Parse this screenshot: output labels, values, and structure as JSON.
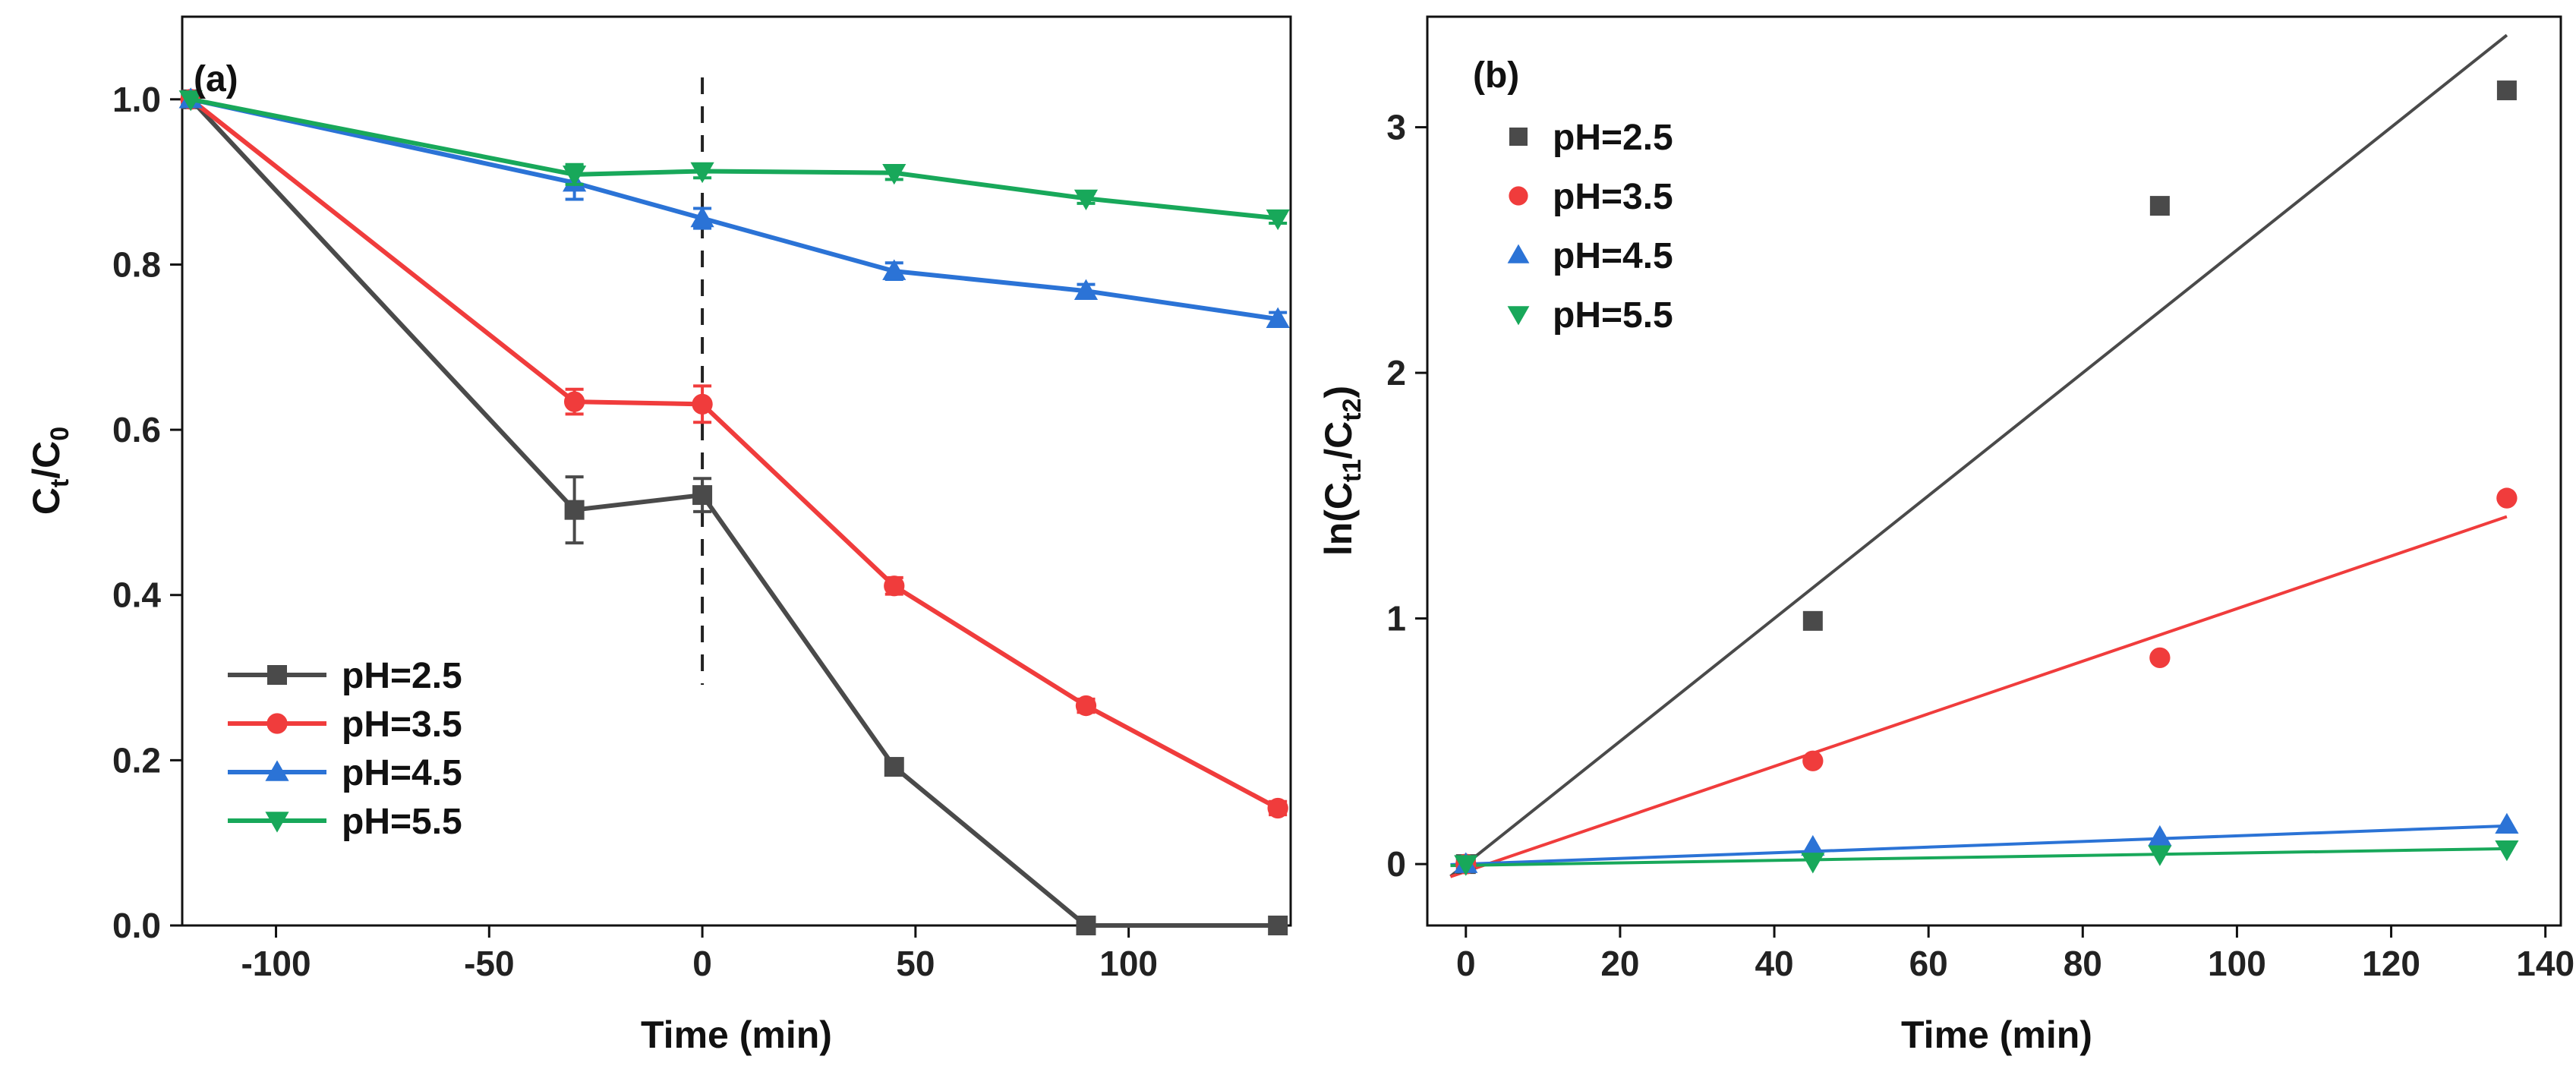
{
  "chart_data": [
    {
      "type": "line",
      "panel": "(a)",
      "xlabel": "Time (min)",
      "ylabel": "Ct/C0",
      "ylabel_main": "C",
      "ylabel_sub1": "t",
      "ylabel_mid": "/C",
      "ylabel_sub2": "0",
      "xlim": [
        -122,
        138
      ],
      "ylim": [
        0,
        1.1
      ],
      "xticks": [
        -100,
        -50,
        0,
        50,
        100
      ],
      "yticks": [
        0.0,
        0.2,
        0.4,
        0.6,
        0.8,
        1.0
      ],
      "ytick_labels": [
        "0.0",
        "0.2",
        "0.4",
        "0.6",
        "0.8",
        "1.0"
      ],
      "vline_x": 0,
      "legend_position": "bottom-left",
      "series": [
        {
          "name": "pH=2.5",
          "color": "#4a4a4a",
          "marker": "square",
          "x": [
            -120,
            -30,
            0,
            45,
            90,
            135
          ],
          "y": [
            1.0,
            0.503,
            0.521,
            0.192,
            0.0,
            0.0
          ],
          "err": [
            0,
            0.04,
            0.02,
            0.008,
            0.005,
            0.005
          ]
        },
        {
          "name": "pH=3.5",
          "color": "#f03c3c",
          "marker": "circle",
          "x": [
            -120,
            -30,
            0,
            45,
            90,
            135
          ],
          "y": [
            1.0,
            0.634,
            0.631,
            0.411,
            0.266,
            0.142
          ],
          "err": [
            0,
            0.015,
            0.022,
            0.01,
            0.008,
            0.008
          ]
        },
        {
          "name": "pH=4.5",
          "color": "#2b73d6",
          "marker": "triangle-up",
          "x": [
            -120,
            -30,
            0,
            45,
            90,
            135
          ],
          "y": [
            1.0,
            0.899,
            0.856,
            0.792,
            0.768,
            0.734
          ],
          "err": [
            0,
            0.02,
            0.012,
            0.01,
            0.008,
            0.008
          ]
        },
        {
          "name": "pH=5.5",
          "color": "#18a85a",
          "marker": "triangle-down",
          "x": [
            -120,
            -30,
            0,
            45,
            90,
            135
          ],
          "y": [
            1.0,
            0.909,
            0.913,
            0.911,
            0.88,
            0.856
          ],
          "err": [
            0,
            0.012,
            0.008,
            0.008,
            0.006,
            0.006
          ]
        }
      ]
    },
    {
      "type": "scatter",
      "panel": "(b)",
      "xlabel": "Time (min)",
      "ylabel": "ln(Ct1/Ct2)",
      "ylabel_main": "ln(C",
      "ylabel_sub1": "t1",
      "ylabel_mid": "/C",
      "ylabel_sub2": "t2",
      "ylabel_end": ")",
      "xlim": [
        -5,
        142
      ],
      "ylim": [
        -0.25,
        3.45
      ],
      "xticks": [
        0,
        20,
        40,
        60,
        80,
        100,
        120,
        140
      ],
      "yticks": [
        0,
        1,
        2,
        3
      ],
      "legend_position": "top-left",
      "series": [
        {
          "name": "pH=2.5",
          "color": "#4a4a4a",
          "marker": "square",
          "x": [
            0,
            45,
            90,
            135
          ],
          "y": [
            0.0,
            0.99,
            2.68,
            3.15
          ],
          "fit": [
            0.0,
            0.025
          ]
        },
        {
          "name": "pH=3.5",
          "color": "#f03c3c",
          "marker": "circle",
          "x": [
            0,
            45,
            90,
            135
          ],
          "y": [
            0.0,
            0.42,
            0.84,
            1.49
          ],
          "fit": [
            -0.03,
            0.0107
          ]
        },
        {
          "name": "pH=4.5",
          "color": "#2b73d6",
          "marker": "triangle-up",
          "x": [
            0,
            45,
            90,
            135
          ],
          "y": [
            0.0,
            0.07,
            0.11,
            0.16
          ],
          "fit": [
            0.0,
            0.00115
          ]
        },
        {
          "name": "pH=5.5",
          "color": "#18a85a",
          "marker": "triangle-down",
          "x": [
            0,
            45,
            90,
            135
          ],
          "y": [
            0.0,
            0.01,
            0.04,
            0.06
          ],
          "fit": [
            -0.005,
            0.0005
          ]
        }
      ]
    }
  ]
}
